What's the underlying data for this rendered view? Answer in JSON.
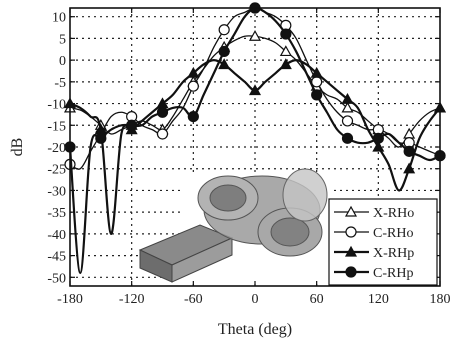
{
  "chart_data": {
    "type": "line",
    "xlabel": "Theta (deg)",
    "ylabel": "dB",
    "xlim": [
      -180,
      180
    ],
    "ylim": [
      -52,
      12
    ],
    "x_ticks": [
      -180,
      -120,
      -60,
      0,
      60,
      120,
      180
    ],
    "y_ticks": [
      10,
      5,
      0,
      -5,
      -10,
      -15,
      -20,
      -25,
      -30,
      -35,
      -40,
      -45,
      -50
    ],
    "grid": "dotted",
    "legend_position": "bottom-right",
    "series": [
      {
        "name": "X-RHo",
        "marker": "open-triangle",
        "x": [
          -180,
          -170,
          -160,
          -150,
          -140,
          -130,
          -120,
          -110,
          -100,
          -90,
          -80,
          -70,
          -60,
          -50,
          -40,
          -30,
          -20,
          -10,
          0,
          10,
          20,
          30,
          40,
          50,
          60,
          70,
          80,
          90,
          100,
          110,
          120,
          130,
          140,
          150,
          160,
          170,
          180
        ],
        "values": [
          -11,
          -11.5,
          -13,
          -15,
          -17,
          -16,
          -15,
          -14,
          -15,
          -16,
          -13,
          -9,
          -5,
          -2,
          1,
          3,
          4.5,
          5.5,
          5.5,
          5,
          4,
          2,
          0,
          -3,
          -6,
          -8,
          -9,
          -11,
          -12,
          -14,
          -16,
          -18,
          -20,
          -17,
          -14,
          -12,
          -11
        ]
      },
      {
        "name": "C-RHo",
        "marker": "open-circle",
        "x": [
          -180,
          -170,
          -160,
          -150,
          -140,
          -130,
          -120,
          -110,
          -100,
          -90,
          -80,
          -70,
          -60,
          -50,
          -40,
          -30,
          -20,
          -10,
          0,
          10,
          20,
          30,
          40,
          50,
          60,
          70,
          80,
          90,
          100,
          110,
          120,
          130,
          140,
          150,
          160,
          170,
          180
        ],
        "values": [
          -24,
          -25,
          -21,
          -17,
          -13,
          -12,
          -13,
          -15,
          -16,
          -17,
          -14,
          -11,
          -6,
          -2,
          3,
          7,
          10,
          11,
          12,
          11,
          10,
          8,
          5,
          0,
          -5,
          -9,
          -12,
          -14,
          -15,
          -16,
          -16,
          -17,
          -19,
          -19,
          -20,
          -21,
          -22
        ]
      },
      {
        "name": "X-RHp",
        "marker": "filled-triangle",
        "x": [
          -180,
          -170,
          -160,
          -150,
          -140,
          -130,
          -120,
          -110,
          -100,
          -90,
          -80,
          -70,
          -60,
          -50,
          -40,
          -30,
          -20,
          -10,
          0,
          10,
          20,
          30,
          40,
          50,
          60,
          70,
          80,
          90,
          100,
          110,
          120,
          130,
          140,
          150,
          160,
          170,
          180
        ],
        "values": [
          -10,
          -11,
          -13,
          -16,
          -40,
          -17,
          -16,
          -14,
          -12,
          -10,
          -8,
          -5,
          -3,
          -1,
          0,
          -1,
          -3,
          -5,
          -7,
          -5,
          -3,
          -1,
          0,
          -1,
          -3,
          -5,
          -7,
          -9,
          -11,
          -16,
          -20,
          -24,
          -30,
          -25,
          -18,
          -14,
          -11
        ]
      },
      {
        "name": "C-RHp",
        "marker": "filled-circle",
        "x": [
          -180,
          -170,
          -160,
          -150,
          -140,
          -130,
          -120,
          -110,
          -100,
          -90,
          -80,
          -70,
          -60,
          -50,
          -40,
          -30,
          -20,
          -10,
          0,
          10,
          20,
          30,
          40,
          50,
          60,
          70,
          80,
          90,
          100,
          110,
          120,
          130,
          140,
          150,
          160,
          170,
          180
        ],
        "values": [
          -20,
          -49,
          -20,
          -18,
          -16,
          -15,
          -15,
          -15,
          -13,
          -12,
          -11,
          -11,
          -13,
          -8,
          -3,
          2,
          6,
          10,
          12,
          11,
          9,
          6,
          2,
          -3,
          -8,
          -12,
          -16,
          -18,
          -19,
          -19,
          -18,
          -17,
          -19,
          -21,
          -22,
          -23,
          -22
        ]
      }
    ]
  },
  "legend": {
    "entries": [
      "X-RHo",
      "C-RHo",
      "X-RHp",
      "C-RHp"
    ]
  },
  "inset": {
    "description_icon": "antenna-model-icon"
  }
}
